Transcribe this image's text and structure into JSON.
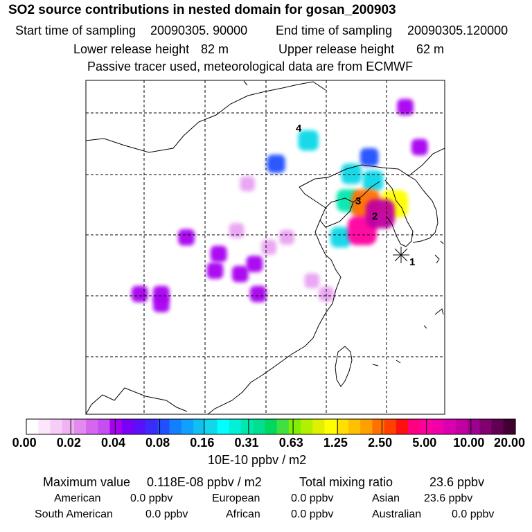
{
  "title": "SO2 source contributions in nested domain for gosan_200903",
  "header": {
    "start_label": "Start time of sampling",
    "start_value": "20090305. 90000",
    "end_label": "End time of sampling",
    "end_value": "20090305.120000",
    "lower_label": "Lower release height",
    "lower_value": "82 m",
    "upper_label": "Upper release height",
    "upper_value": "62 m",
    "note": "Passive tracer used, meteorological data are from ECMWF"
  },
  "chart_data": {
    "type": "heatmap",
    "title": "SO2 source contributions in nested domain for gosan_200903",
    "map_labels": [
      "1",
      "2",
      "3",
      "4"
    ],
    "colorbar": {
      "unit": "10E-10 ppbv / m2",
      "tick_labels": [
        "0.00",
        "0.02",
        "0.04",
        "0.08",
        "0.16",
        "0.31",
        "0.63",
        "1.25",
        "2.50",
        "5.00",
        "10.00",
        "20.00"
      ],
      "colors": [
        "#ffffff",
        "#fbe6fb",
        "#f7ccf7",
        "#efb2f3",
        "#e38aef",
        "#d766ef",
        "#c44ef0",
        "#a800f0",
        "#7a00f5",
        "#5a10f8",
        "#3a2cfb",
        "#2050ff",
        "#1080ff",
        "#10a0ff",
        "#10c0f0",
        "#10d8e8",
        "#00ffff",
        "#00f0d8",
        "#00e8b0",
        "#00e090",
        "#00d860",
        "#40e040",
        "#80f000",
        "#b0f000",
        "#e0f000",
        "#ffff00",
        "#ffe000",
        "#ffc000",
        "#ffa000",
        "#ff7000",
        "#ff4000",
        "#ff1010",
        "#ff0080",
        "#ff00a0",
        "#ef00a8",
        "#d800b0",
        "#c000a0",
        "#a00090",
        "#800070",
        "#600050",
        "#400030"
      ]
    },
    "plumes": [
      {
        "lon": 0.77,
        "lat": 0.45,
        "value": 5.0
      },
      {
        "lon": 0.82,
        "lat": 0.4,
        "value": 10.0
      },
      {
        "lon": 0.78,
        "lat": 0.37,
        "value": 2.5
      },
      {
        "lon": 0.86,
        "lat": 0.37,
        "value": 1.25
      },
      {
        "lon": 0.73,
        "lat": 0.36,
        "value": 0.31
      },
      {
        "lon": 0.8,
        "lat": 0.3,
        "value": 0.16
      },
      {
        "lon": 0.74,
        "lat": 0.28,
        "value": 0.16
      },
      {
        "lon": 0.93,
        "lat": 0.2,
        "value": 0.04
      },
      {
        "lon": 0.79,
        "lat": 0.23,
        "value": 0.08
      },
      {
        "lon": 0.71,
        "lat": 0.47,
        "value": 0.16
      },
      {
        "lon": 0.53,
        "lat": 0.25,
        "value": 0.08
      },
      {
        "lon": 0.62,
        "lat": 0.18,
        "value": 0.16
      },
      {
        "lon": 0.89,
        "lat": 0.08,
        "value": 0.04
      },
      {
        "lon": 0.45,
        "lat": 0.31,
        "value": 0.02
      },
      {
        "lon": 0.37,
        "lat": 0.52,
        "value": 0.04
      },
      {
        "lon": 0.47,
        "lat": 0.55,
        "value": 0.04
      },
      {
        "lon": 0.43,
        "lat": 0.58,
        "value": 0.04
      },
      {
        "lon": 0.42,
        "lat": 0.45,
        "value": 0.02
      },
      {
        "lon": 0.51,
        "lat": 0.5,
        "value": 0.02
      },
      {
        "lon": 0.56,
        "lat": 0.47,
        "value": 0.02
      },
      {
        "lon": 0.28,
        "lat": 0.47,
        "value": 0.04
      },
      {
        "lon": 0.48,
        "lat": 0.64,
        "value": 0.04
      },
      {
        "lon": 0.15,
        "lat": 0.64,
        "value": 0.04
      },
      {
        "lon": 0.21,
        "lat": 0.64,
        "value": 0.04
      },
      {
        "lon": 0.21,
        "lat": 0.67,
        "value": 0.04
      },
      {
        "lon": 0.36,
        "lat": 0.57,
        "value": 0.04
      },
      {
        "lon": 0.63,
        "lat": 0.6,
        "value": 0.02
      },
      {
        "lon": 0.67,
        "lat": 0.64,
        "value": 0.02
      }
    ]
  },
  "stats": {
    "max_label": "Maximum value",
    "max_value": "0.118E-08 ppbv / m2",
    "total_label": "Total mixing ratio",
    "total_value": "23.6 ppbv",
    "regions": [
      {
        "name": "American",
        "value": "0.0 ppbv"
      },
      {
        "name": "European",
        "value": "0.0 ppbv"
      },
      {
        "name": "Asian",
        "value": "23.6 ppbv"
      },
      {
        "name": "South American",
        "value": "0.0 ppbv"
      },
      {
        "name": "African",
        "value": "0.0 ppbv"
      },
      {
        "name": "Australian",
        "value": "0.0 ppbv"
      }
    ]
  }
}
